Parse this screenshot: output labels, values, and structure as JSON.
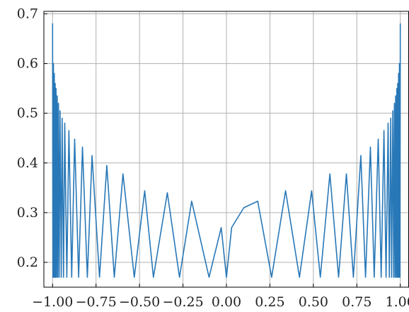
{
  "chart_data": {
    "type": "line",
    "title": "",
    "xlabel": "",
    "ylabel": "",
    "xlim": [
      -1.05,
      1.05
    ],
    "ylim": [
      0.15,
      0.705
    ],
    "grid": true,
    "x_ticks": [
      -1.0,
      -0.75,
      -0.5,
      -0.25,
      0.0,
      0.25,
      0.5,
      0.75,
      1.0
    ],
    "x_tick_labels": [
      "−1.00",
      "−0.75",
      "−0.50",
      "−0.25",
      "0.00",
      "0.25",
      "0.50",
      "0.75",
      "1.00"
    ],
    "y_ticks": [
      0.2,
      0.3,
      0.4,
      0.5,
      0.6,
      0.7
    ],
    "y_tick_labels": [
      "0.2",
      "0.3",
      "0.4",
      "0.5",
      "0.6",
      "0.7"
    ],
    "colors": {
      "series": "#2878b8",
      "grid": "#b0b0b0",
      "axis": "#000000"
    },
    "series": [
      {
        "x": [
          -1.0,
          -0.998,
          -0.995,
          -0.993,
          -0.99,
          -0.988,
          -0.985,
          -0.983,
          -0.98,
          -0.977,
          -0.973,
          -0.97,
          -0.966,
          -0.962,
          -0.957,
          -0.95,
          -0.945,
          -0.937,
          -0.93,
          -0.918,
          -0.906,
          -0.89,
          -0.873,
          -0.85,
          -0.828,
          -0.8,
          -0.773,
          -0.73,
          -0.688,
          -0.645,
          -0.595,
          -0.53,
          -0.47,
          -0.42,
          -0.34,
          -0.27,
          -0.2,
          -0.1,
          -0.03,
          0.0,
          0.03,
          0.1,
          0.18,
          0.26,
          0.34,
          0.42,
          0.49,
          0.54,
          0.595,
          0.645,
          0.69,
          0.73,
          0.773,
          0.8,
          0.828,
          0.85,
          0.873,
          0.89,
          0.906,
          0.918,
          0.93,
          0.937,
          0.945,
          0.95,
          0.957,
          0.962,
          0.966,
          0.97,
          0.973,
          0.977,
          0.98,
          0.983,
          0.985,
          0.988,
          0.99,
          0.993,
          0.995,
          0.998,
          1.0
        ],
        "y": [
          0.68,
          0.17,
          0.6,
          0.17,
          0.58,
          0.17,
          0.56,
          0.17,
          0.55,
          0.17,
          0.535,
          0.17,
          0.52,
          0.17,
          0.505,
          0.17,
          0.49,
          0.17,
          0.48,
          0.17,
          0.465,
          0.17,
          0.448,
          0.17,
          0.432,
          0.17,
          0.415,
          0.17,
          0.395,
          0.17,
          0.378,
          0.17,
          0.344,
          0.17,
          0.34,
          0.17,
          0.323,
          0.17,
          0.27,
          0.17,
          0.27,
          0.31,
          0.323,
          0.17,
          0.344,
          0.17,
          0.344,
          0.17,
          0.378,
          0.17,
          0.378,
          0.17,
          0.415,
          0.17,
          0.432,
          0.17,
          0.448,
          0.17,
          0.465,
          0.17,
          0.48,
          0.17,
          0.49,
          0.17,
          0.505,
          0.17,
          0.52,
          0.17,
          0.535,
          0.17,
          0.55,
          0.17,
          0.56,
          0.17,
          0.58,
          0.17,
          0.6,
          0.17,
          0.68
        ]
      }
    ]
  }
}
